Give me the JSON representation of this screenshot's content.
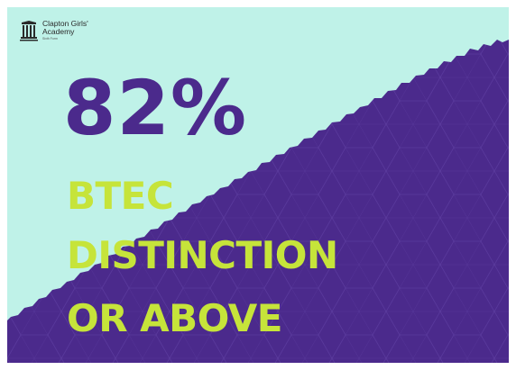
{
  "brand": {
    "line1": "Clapton Girls'",
    "line2": "Academy",
    "line3": "Sixth Form",
    "logo_icon": "school-crest-icon"
  },
  "headline": "82%",
  "sublines": [
    "BTEC",
    "DISTINCTION",
    "OR ABOVE"
  ],
  "colors": {
    "mint": "#bff2e8",
    "purple": "#4b2a8c",
    "lime": "#c6e43a",
    "text": "#2a2a2a"
  }
}
